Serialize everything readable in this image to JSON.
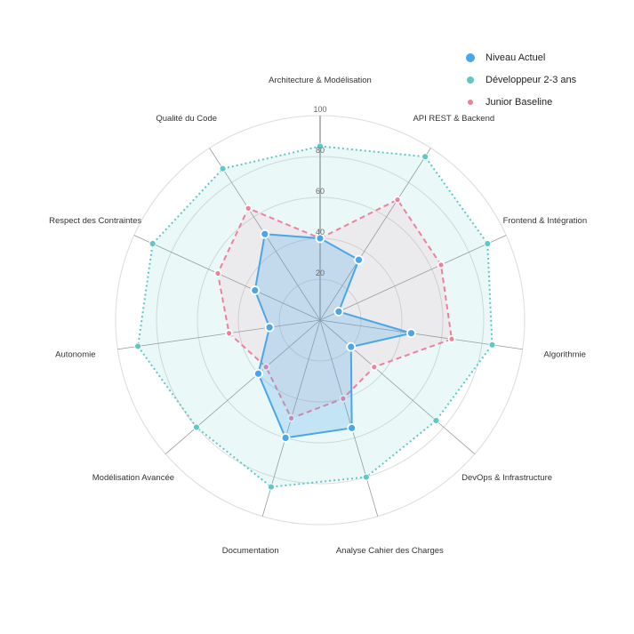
{
  "chart_data": {
    "type": "radar",
    "title": "",
    "rlim": [
      0,
      100
    ],
    "r_ticks": [
      20,
      40,
      60,
      80,
      100
    ],
    "grid": true,
    "legend_position": "top-right",
    "categories": [
      "Architecture & Modélisation",
      "API REST & Backend",
      "Frontend & Intégration",
      "Algorithmie",
      "DevOps & Infrastructure",
      "Analyse Cahier des Charges",
      "Documentation",
      "Modélisation Avancée",
      "Autonomie",
      "Respect des Contraintes",
      "Qualité du Code"
    ],
    "series": [
      {
        "name": "Développeur 2-3 ans",
        "color": "#5ec8c8",
        "fill": "rgba(94,200,200,0.12)",
        "style": "dotted",
        "values": [
          85,
          95,
          90,
          85,
          75,
          80,
          85,
          80,
          90,
          90,
          88
        ]
      },
      {
        "name": "Junior Baseline",
        "color": "#f0809a",
        "fill": "rgba(240,128,154,0.10)",
        "style": "dashed",
        "values": [
          40,
          70,
          65,
          65,
          35,
          40,
          50,
          35,
          45,
          55,
          65
        ]
      },
      {
        "name": "Niveau Actuel",
        "color": "#4aa6e8",
        "fill": "rgba(74,166,232,0.25)",
        "style": "solid",
        "values": [
          40,
          35,
          10,
          45,
          20,
          55,
          60,
          40,
          25,
          35,
          50
        ]
      }
    ]
  },
  "legend": {
    "items": [
      {
        "label": "Niveau Actuel",
        "color": "#4aa6e8",
        "size": 10
      },
      {
        "label": "Développeur 2-3 ans",
        "color": "#5ec8c8",
        "size": 8
      },
      {
        "label": "Junior Baseline",
        "color": "#f0809a",
        "size": 6
      }
    ]
  }
}
